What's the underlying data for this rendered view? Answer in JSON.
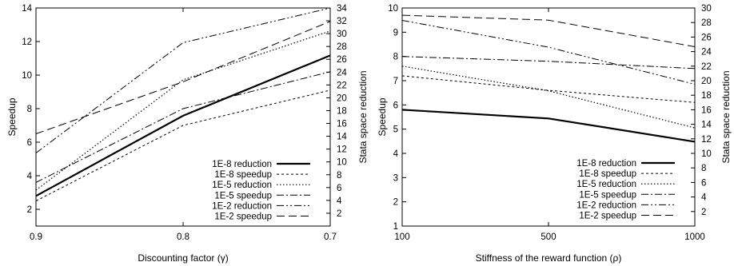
{
  "chart_data": [
    {
      "type": "line",
      "x_scale": "categorical",
      "categories": [
        "0.9",
        "0.8",
        "0.7"
      ],
      "xlabel": "Discounting factor (γ)",
      "ylabel": "Speedup",
      "y2label": "Stata space reduction",
      "ylim": [
        1,
        14
      ],
      "yticks": [
        2,
        4,
        6,
        8,
        10,
        12,
        14
      ],
      "y2lim": [
        0,
        34
      ],
      "y2ticks": [
        2,
        4,
        6,
        8,
        10,
        12,
        14,
        16,
        18,
        20,
        22,
        24,
        26,
        28,
        30,
        32,
        34
      ],
      "grid": false,
      "legend_position": "bottom-right",
      "series": [
        {
          "name": "1E-8 reduction",
          "axis": "right",
          "values": [
            4.7,
            17.2,
            26.6
          ],
          "dash": "solid",
          "width": 2.2
        },
        {
          "name": "1E-8 speedup",
          "axis": "left",
          "values": [
            2.5,
            7.0,
            9.1
          ],
          "dash": "3,3",
          "width": 1
        },
        {
          "name": "1E-5 reduction",
          "axis": "right",
          "values": [
            5.6,
            22.8,
            30.4
          ],
          "dash": "1.5,2.5",
          "width": 1.2
        },
        {
          "name": "1E-5 speedup",
          "axis": "left",
          "values": [
            3.6,
            8.0,
            10.2
          ],
          "dash": "9,3,2,3",
          "width": 1
        },
        {
          "name": "1E-2 reduction",
          "axis": "right",
          "values": [
            11.4,
            28.6,
            34.0
          ],
          "dash": "9,3,2,3,2,3",
          "width": 1
        },
        {
          "name": "1E-2 speedup",
          "axis": "left",
          "values": [
            6.5,
            9.6,
            13.2
          ],
          "dash": "10,5",
          "width": 1
        }
      ]
    },
    {
      "type": "line",
      "x_scale": "categorical",
      "categories": [
        "100",
        "500",
        "1000"
      ],
      "xlabel": "Stiffness of the reward function (ρ)",
      "ylabel": "Speedup",
      "y2label": "Stata space reduction",
      "ylim": [
        1,
        10
      ],
      "yticks": [
        1,
        2,
        3,
        4,
        5,
        6,
        7,
        8,
        9,
        10
      ],
      "y2lim": [
        0,
        30
      ],
      "y2ticks": [
        2,
        4,
        6,
        8,
        10,
        12,
        14,
        16,
        18,
        20,
        22,
        24,
        26,
        28,
        30
      ],
      "grid": false,
      "legend_position": "bottom-right",
      "series": [
        {
          "name": "1E-8 reduction",
          "axis": "right",
          "values": [
            16.0,
            14.8,
            11.6
          ],
          "dash": "solid",
          "width": 2.2
        },
        {
          "name": "1E-8 speedup",
          "axis": "left",
          "values": [
            7.2,
            6.6,
            6.1
          ],
          "dash": "3,3",
          "width": 1
        },
        {
          "name": "1E-5 reduction",
          "axis": "right",
          "values": [
            22.0,
            18.6,
            13.5
          ],
          "dash": "1.5,2.5",
          "width": 1.2
        },
        {
          "name": "1E-5 speedup",
          "axis": "left",
          "values": [
            8.0,
            7.8,
            7.5
          ],
          "dash": "9,3,2,3",
          "width": 1
        },
        {
          "name": "1E-2 reduction",
          "axis": "right",
          "values": [
            28.3,
            24.6,
            19.5
          ],
          "dash": "9,3,2,3,2,3",
          "width": 1
        },
        {
          "name": "1E-2 speedup",
          "axis": "left",
          "values": [
            9.7,
            9.5,
            8.4
          ],
          "dash": "10,5",
          "width": 1
        }
      ]
    }
  ]
}
